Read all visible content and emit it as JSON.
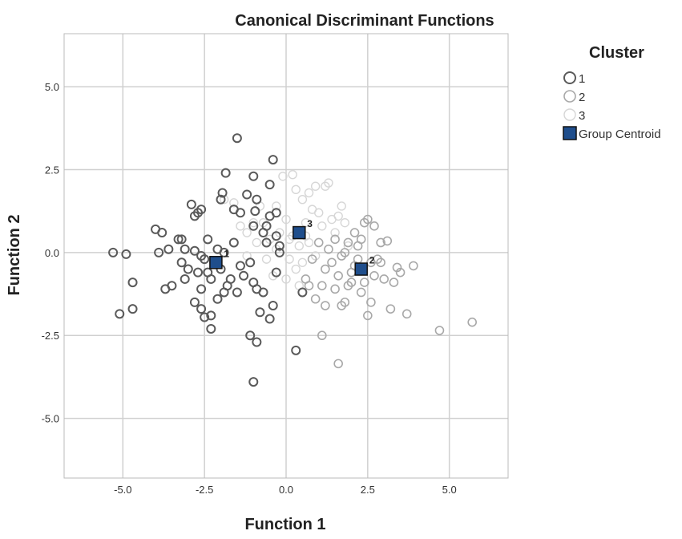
{
  "chart_data": {
    "type": "scatter",
    "title": "Canonical Discriminant Functions",
    "xlabel": "Function 1",
    "ylabel": "Function 2",
    "xlim": [
      -6.8,
      6.8
    ],
    "ylim": [
      -6.8,
      6.6
    ],
    "xticks": [
      -5.0,
      -2.5,
      0.0,
      2.5,
      5.0
    ],
    "xtick_labels": [
      "-5.0",
      "-2.5",
      "0.0",
      "2.5",
      "5.0"
    ],
    "yticks": [
      -5.0,
      -2.5,
      0.0,
      2.5,
      5.0
    ],
    "ytick_labels": [
      "-5.0",
      "-2.5",
      "0.0",
      "2.5",
      "5.0"
    ],
    "grid": true,
    "legend": {
      "title": "Cluster",
      "placement": "right",
      "entries": [
        "1",
        "2",
        "3",
        "Group Centroid"
      ]
    },
    "colors": {
      "cluster_1": "#5a5a5a",
      "cluster_2": "#a8a8a8",
      "cluster_3": "#d6d6d6",
      "centroid": "#1f4e8c",
      "grid": "#d0d0d0",
      "frame": "#bbbbbb"
    },
    "series": [
      {
        "name": "1",
        "points": [
          [
            -5.3,
            0.0
          ],
          [
            -4.9,
            -0.05
          ],
          [
            -4.7,
            -0.9
          ],
          [
            -5.1,
            -1.85
          ],
          [
            -4.7,
            -1.7
          ],
          [
            -4.0,
            0.7
          ],
          [
            -3.8,
            0.6
          ],
          [
            -3.9,
            0.0
          ],
          [
            -3.6,
            0.1
          ],
          [
            -3.7,
            -1.1
          ],
          [
            -3.5,
            -1.0
          ],
          [
            -3.3,
            0.4
          ],
          [
            -3.2,
            0.4
          ],
          [
            -3.1,
            0.1
          ],
          [
            -3.2,
            -0.3
          ],
          [
            -3.0,
            -0.5
          ],
          [
            -2.9,
            1.45
          ],
          [
            -2.8,
            1.1
          ],
          [
            -2.7,
            1.2
          ],
          [
            -2.6,
            1.3
          ],
          [
            -2.8,
            0.05
          ],
          [
            -2.6,
            -0.1
          ],
          [
            -2.7,
            -0.6
          ],
          [
            -2.5,
            -0.2
          ],
          [
            -2.4,
            0.4
          ],
          [
            -2.3,
            -0.8
          ],
          [
            -2.2,
            -0.3
          ],
          [
            -2.6,
            -1.1
          ],
          [
            -2.8,
            -1.5
          ],
          [
            -2.6,
            -1.7
          ],
          [
            -2.5,
            -1.95
          ],
          [
            -2.3,
            -2.3
          ],
          [
            -2.1,
            -1.4
          ],
          [
            -2.0,
            -0.5
          ],
          [
            -1.9,
            -1.2
          ],
          [
            -1.8,
            -1.0
          ],
          [
            -2.0,
            1.6
          ],
          [
            -1.95,
            1.8
          ],
          [
            -1.85,
            2.4
          ],
          [
            -1.6,
            1.3
          ],
          [
            -1.5,
            3.45
          ],
          [
            -1.4,
            1.2
          ],
          [
            -1.2,
            1.75
          ],
          [
            -1.0,
            0.8
          ],
          [
            -1.0,
            2.3
          ],
          [
            -0.9,
            1.6
          ],
          [
            -0.95,
            1.25
          ],
          [
            -0.7,
            0.6
          ],
          [
            -0.6,
            0.8
          ],
          [
            -0.5,
            2.05
          ],
          [
            -0.4,
            2.8
          ],
          [
            -0.3,
            0.5
          ],
          [
            -0.3,
            1.2
          ],
          [
            -0.6,
            0.3
          ],
          [
            -0.2,
            0.0
          ],
          [
            -1.4,
            -0.4
          ],
          [
            -1.3,
            -0.7
          ],
          [
            -1.1,
            -0.3
          ],
          [
            -1.0,
            -0.9
          ],
          [
            -0.9,
            -1.1
          ],
          [
            -0.7,
            -1.2
          ],
          [
            -0.8,
            -1.8
          ],
          [
            -0.5,
            -2.0
          ],
          [
            -0.4,
            -1.6
          ],
          [
            -1.1,
            -2.5
          ],
          [
            -0.9,
            -2.7
          ],
          [
            -1.0,
            -3.9
          ],
          [
            0.5,
            -1.2
          ],
          [
            0.3,
            -2.95
          ],
          [
            -2.3,
            -1.9
          ],
          [
            -1.7,
            -0.8
          ],
          [
            -1.5,
            -1.2
          ],
          [
            -1.6,
            0.3
          ],
          [
            -2.1,
            0.1
          ],
          [
            -0.5,
            1.1
          ],
          [
            -0.3,
            -0.6
          ],
          [
            -0.2,
            0.2
          ],
          [
            -1.9,
            0.0
          ],
          [
            -3.1,
            -0.8
          ],
          [
            -2.4,
            -0.6
          ]
        ]
      },
      {
        "name": "2",
        "points": [
          [
            0.6,
            -0.8
          ],
          [
            0.9,
            -1.4
          ],
          [
            1.1,
            -2.5
          ],
          [
            1.2,
            -1.6
          ],
          [
            1.5,
            -1.1
          ],
          [
            1.6,
            -3.35
          ],
          [
            1.7,
            -1.6
          ],
          [
            1.8,
            -1.5
          ],
          [
            1.9,
            -1.0
          ],
          [
            2.0,
            -0.6
          ],
          [
            2.1,
            -0.4
          ],
          [
            2.2,
            -0.2
          ],
          [
            2.4,
            -0.9
          ],
          [
            2.5,
            -1.9
          ],
          [
            2.6,
            -1.5
          ],
          [
            2.7,
            -0.7
          ],
          [
            2.8,
            -0.2
          ],
          [
            2.9,
            0.3
          ],
          [
            3.0,
            -0.8
          ],
          [
            3.2,
            -1.7
          ],
          [
            3.3,
            -0.9
          ],
          [
            3.5,
            -0.6
          ],
          [
            3.7,
            -1.85
          ],
          [
            3.9,
            -0.4
          ],
          [
            4.7,
            -2.35
          ],
          [
            5.7,
            -2.1
          ],
          [
            1.3,
            0.1
          ],
          [
            1.5,
            0.4
          ],
          [
            1.7,
            -0.1
          ],
          [
            1.9,
            0.3
          ],
          [
            2.1,
            0.6
          ],
          [
            2.3,
            0.4
          ],
          [
            2.5,
            1.0
          ],
          [
            2.7,
            0.8
          ],
          [
            2.9,
            -0.3
          ],
          [
            1.0,
            0.3
          ],
          [
            0.8,
            -0.2
          ],
          [
            1.2,
            -0.5
          ],
          [
            1.4,
            -0.3
          ],
          [
            1.6,
            -0.7
          ],
          [
            2.0,
            -0.9
          ],
          [
            2.3,
            -1.2
          ],
          [
            2.6,
            -0.3
          ],
          [
            2.2,
            0.2
          ],
          [
            1.8,
            0.0
          ],
          [
            3.1,
            0.35
          ],
          [
            3.4,
            -0.45
          ],
          [
            2.4,
            0.9
          ],
          [
            1.1,
            -1.0
          ],
          [
            0.7,
            -1.0
          ]
        ]
      },
      {
        "name": "3",
        "points": [
          [
            -1.9,
            1.6
          ],
          [
            -1.6,
            1.5
          ],
          [
            -1.4,
            0.8
          ],
          [
            -1.2,
            0.6
          ],
          [
            -0.9,
            0.3
          ],
          [
            -0.7,
            0.9
          ],
          [
            -0.5,
            0.4
          ],
          [
            -0.3,
            1.4
          ],
          [
            -0.1,
            2.3
          ],
          [
            0.2,
            2.35
          ],
          [
            0.3,
            1.9
          ],
          [
            0.5,
            1.6
          ],
          [
            0.7,
            1.8
          ],
          [
            0.9,
            2.0
          ],
          [
            1.2,
            2.0
          ],
          [
            1.3,
            2.1
          ],
          [
            0.0,
            1.0
          ],
          [
            0.2,
            0.5
          ],
          [
            0.4,
            0.2
          ],
          [
            0.6,
            0.9
          ],
          [
            0.8,
            1.3
          ],
          [
            1.0,
            1.2
          ],
          [
            1.1,
            0.8
          ],
          [
            1.4,
            1.0
          ],
          [
            1.6,
            1.1
          ],
          [
            1.8,
            0.9
          ],
          [
            0.1,
            -0.2
          ],
          [
            0.3,
            -0.5
          ],
          [
            0.5,
            -0.3
          ],
          [
            -0.4,
            -0.7
          ],
          [
            -0.6,
            -0.2
          ],
          [
            0.0,
            -0.8
          ],
          [
            0.4,
            -1.0
          ],
          [
            -0.2,
            0.6
          ],
          [
            0.7,
            0.3
          ],
          [
            -1.0,
            0.9
          ],
          [
            -0.8,
            1.4
          ],
          [
            1.5,
            0.6
          ],
          [
            1.9,
            0.2
          ],
          [
            0.9,
            -0.1
          ],
          [
            -1.2,
            -0.1
          ],
          [
            -0.3,
            0.1
          ],
          [
            0.1,
            0.4
          ],
          [
            0.6,
            0.5
          ],
          [
            1.7,
            1.4
          ]
        ]
      }
    ],
    "centroids": [
      {
        "label": "1",
        "x": -2.15,
        "y": -0.3
      },
      {
        "label": "2",
        "x": 2.3,
        "y": -0.5
      },
      {
        "label": "3",
        "x": 0.4,
        "y": 0.6
      }
    ]
  }
}
